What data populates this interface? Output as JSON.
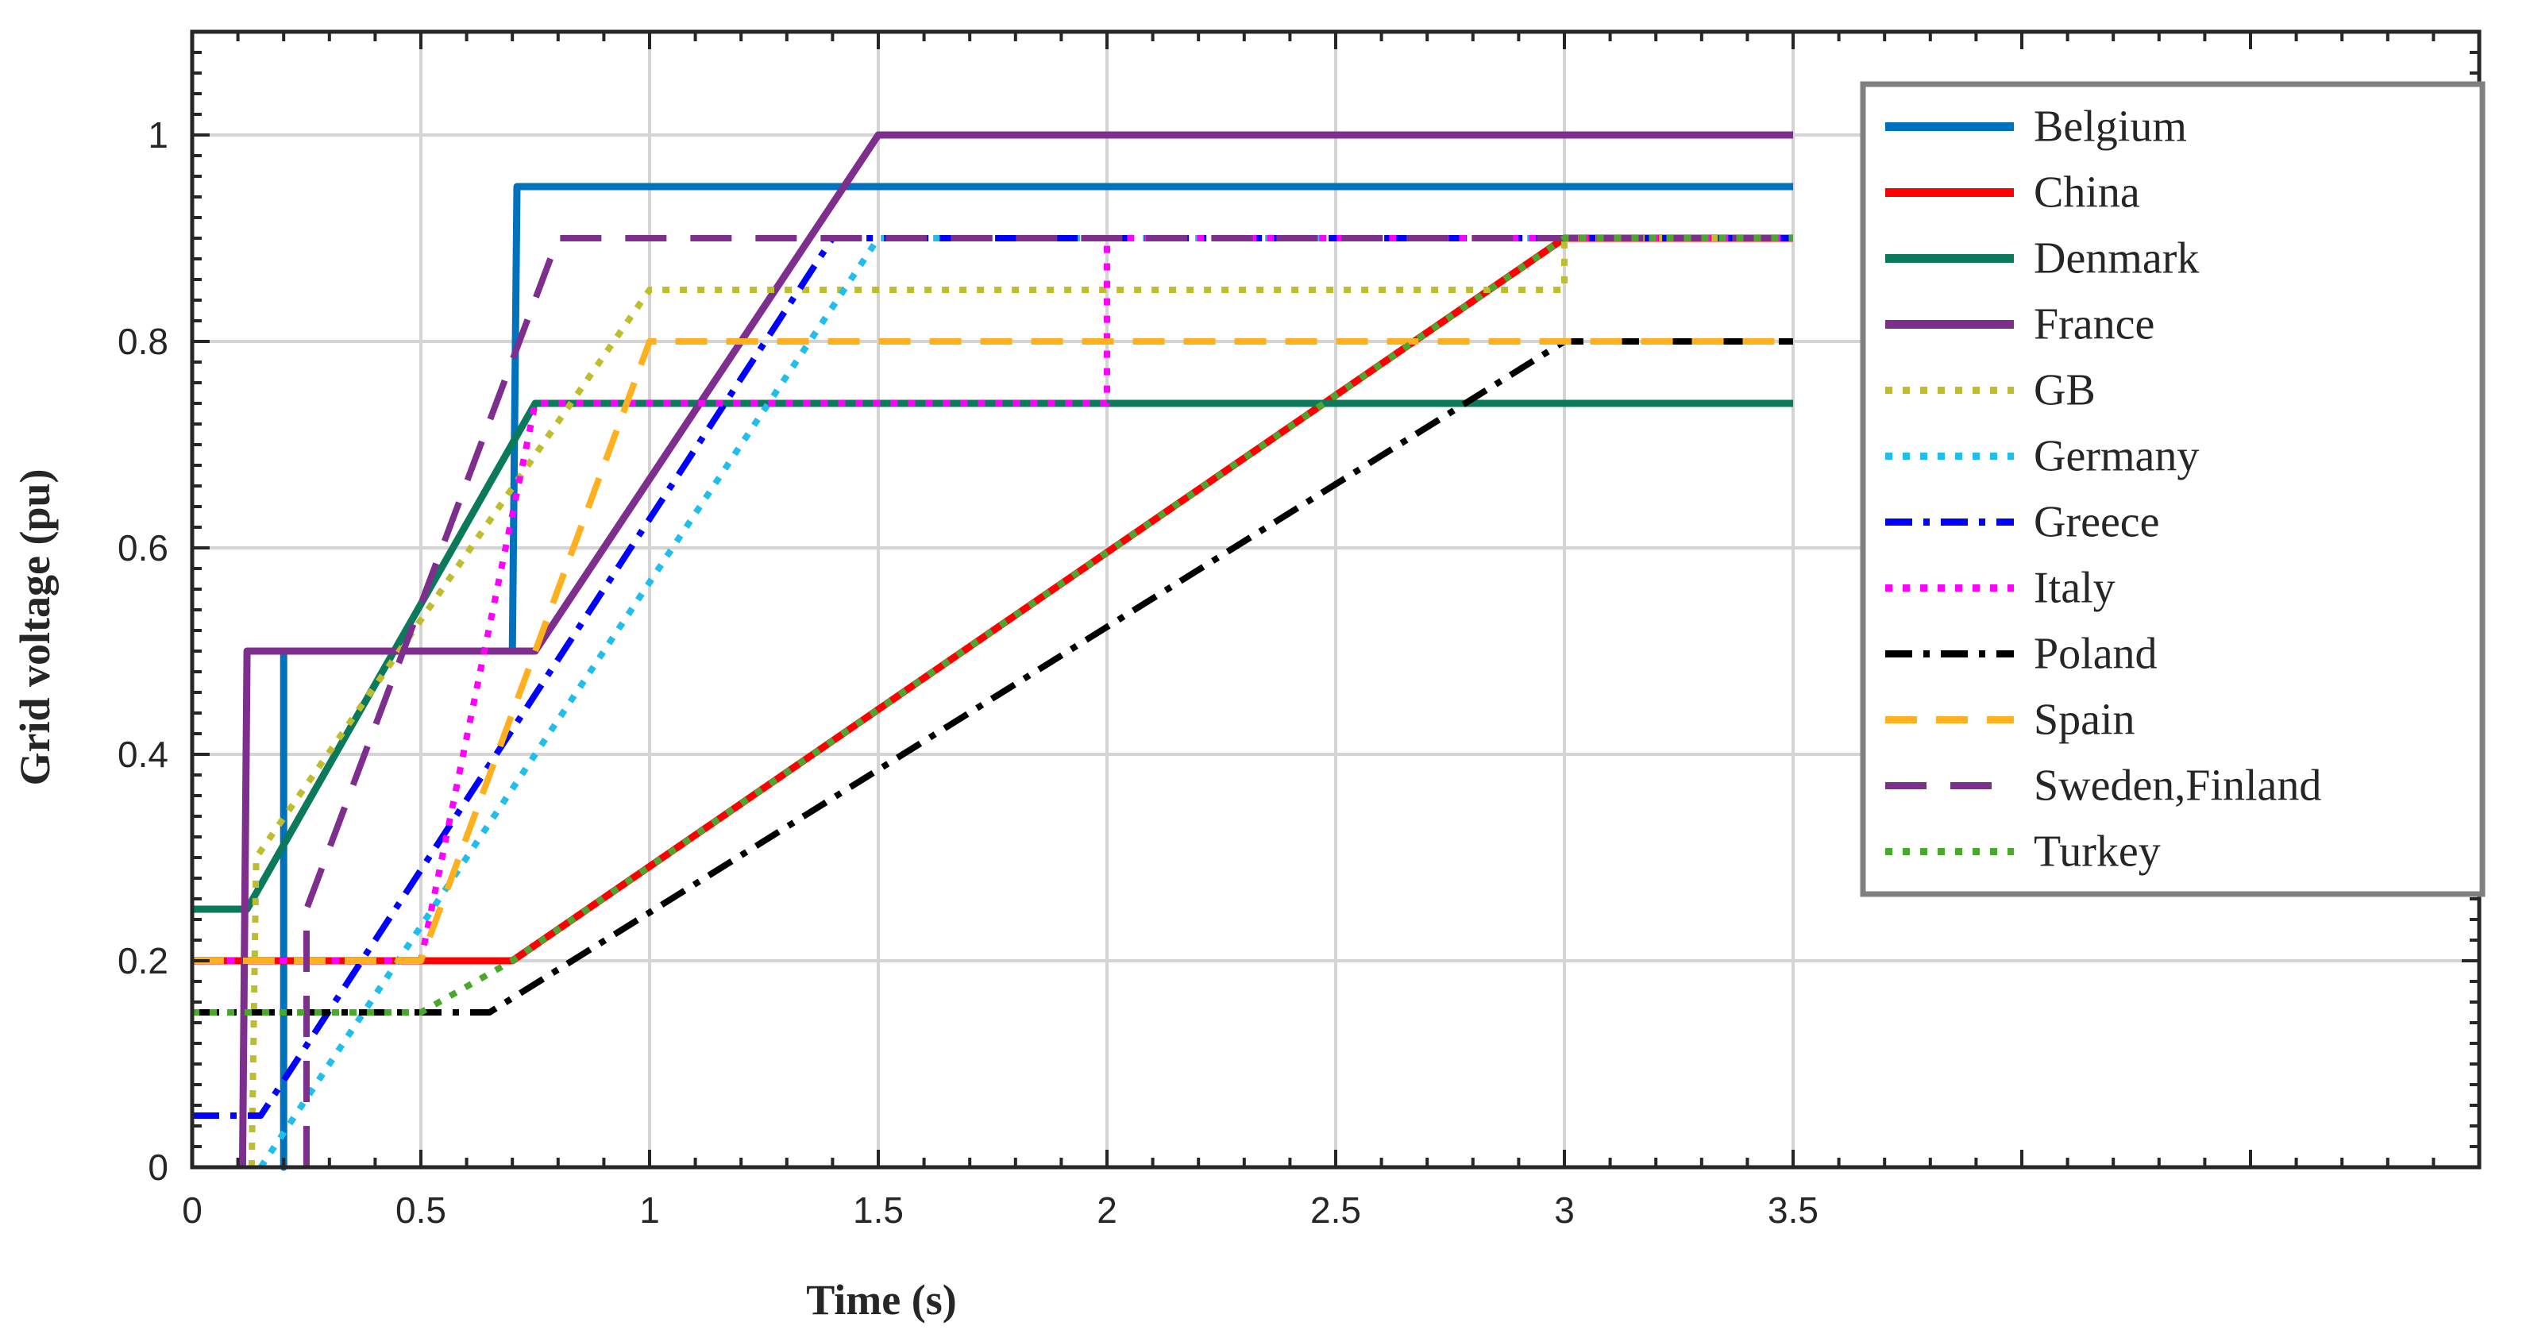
{
  "chart_data": {
    "type": "line",
    "title": "",
    "xlabel": "Time (s)",
    "ylabel": "Grid voltage (pu)",
    "xlim": [
      0,
      5
    ],
    "ylim": [
      0,
      1.1
    ],
    "xticks": [
      "0",
      "0.5",
      "1",
      "1.5",
      "2",
      "2.5",
      "3",
      "3.5"
    ],
    "xtick_values": [
      0,
      0.5,
      1,
      1.5,
      2,
      2.5,
      3,
      3.5
    ],
    "yticks": [
      "0",
      "0.2",
      "0.4",
      "0.6",
      "0.8",
      "1"
    ],
    "ytick_values": [
      0,
      0.2,
      0.4,
      0.6,
      0.8,
      1.0
    ],
    "grid": true,
    "legend_position": "top-right",
    "series": [
      {
        "name": "Belgium",
        "color": "#0072BD",
        "dash": "solid",
        "points": [
          [
            0.2,
            0.5
          ],
          [
            0.2,
            0
          ],
          [
            0.2,
            0.5
          ],
          [
            0.7,
            0.5
          ],
          [
            0.71,
            0.95
          ],
          [
            3.5,
            0.95
          ]
        ]
      },
      {
        "name": "China",
        "color": "#FF0000",
        "dash": "solid",
        "points": [
          [
            0,
            0.2
          ],
          [
            0.7,
            0.2
          ],
          [
            3.0,
            0.9
          ],
          [
            3.5,
            0.9
          ]
        ]
      },
      {
        "name": "Denmark",
        "color": "#0B7A5A",
        "dash": "solid",
        "points": [
          [
            0,
            0.25
          ],
          [
            0.12,
            0.25
          ],
          [
            0.75,
            0.74
          ],
          [
            3.5,
            0.74
          ]
        ]
      },
      {
        "name": "France",
        "color": "#7E2F8E",
        "dash": "solid",
        "points": [
          [
            0.11,
            0
          ],
          [
            0.12,
            0.5
          ],
          [
            0.75,
            0.5
          ],
          [
            1.5,
            1.0
          ],
          [
            3.5,
            1.0
          ]
        ]
      },
      {
        "name": "GB",
        "color": "#BDBD2E",
        "dash": "dot",
        "points": [
          [
            0.13,
            0
          ],
          [
            0.14,
            0.3
          ],
          [
            1.0,
            0.85
          ],
          [
            3.0,
            0.85
          ],
          [
            3.0,
            0.9
          ],
          [
            3.5,
            0.9
          ]
        ]
      },
      {
        "name": "Germany",
        "color": "#21BEEB",
        "dash": "dot",
        "points": [
          [
            0.15,
            0
          ],
          [
            1.5,
            0.9
          ],
          [
            3.5,
            0.9
          ]
        ]
      },
      {
        "name": "Greece",
        "color": "#0000FF",
        "dash": "dashdot",
        "points": [
          [
            0,
            0.05
          ],
          [
            0.15,
            0.05
          ],
          [
            1.4,
            0.9
          ],
          [
            3.5,
            0.9
          ]
        ]
      },
      {
        "name": "Italy",
        "color": "#FF00FF",
        "dash": "dot",
        "points": [
          [
            0,
            0.2
          ],
          [
            0.5,
            0.2
          ],
          [
            0.75,
            0.74
          ],
          [
            2.0,
            0.74
          ],
          [
            2.0,
            0.9
          ],
          [
            3.5,
            0.9
          ]
        ]
      },
      {
        "name": "Poland",
        "color": "#000000",
        "dash": "dashdot",
        "points": [
          [
            0,
            0.15
          ],
          [
            0.65,
            0.15
          ],
          [
            3.0,
            0.8
          ],
          [
            3.5,
            0.8
          ]
        ]
      },
      {
        "name": "Spain",
        "color": "#FFB01F",
        "dash": "dash",
        "points": [
          [
            0,
            0.2
          ],
          [
            0.5,
            0.2
          ],
          [
            1.0,
            0.8
          ],
          [
            3.5,
            0.8
          ]
        ]
      },
      {
        "name": "Sweden,Finland",
        "color": "#7E2F8E",
        "dash": "longdash",
        "points": [
          [
            0.25,
            0
          ],
          [
            0.25,
            0.25
          ],
          [
            0.8,
            0.9
          ],
          [
            3.5,
            0.9
          ]
        ]
      },
      {
        "name": "Turkey",
        "color": "#4BA82E",
        "dash": "dot",
        "points": [
          [
            0,
            0.15
          ],
          [
            0.5,
            0.15
          ],
          [
            0.7,
            0.2
          ],
          [
            3.0,
            0.9
          ],
          [
            3.5,
            0.9
          ]
        ]
      }
    ]
  }
}
